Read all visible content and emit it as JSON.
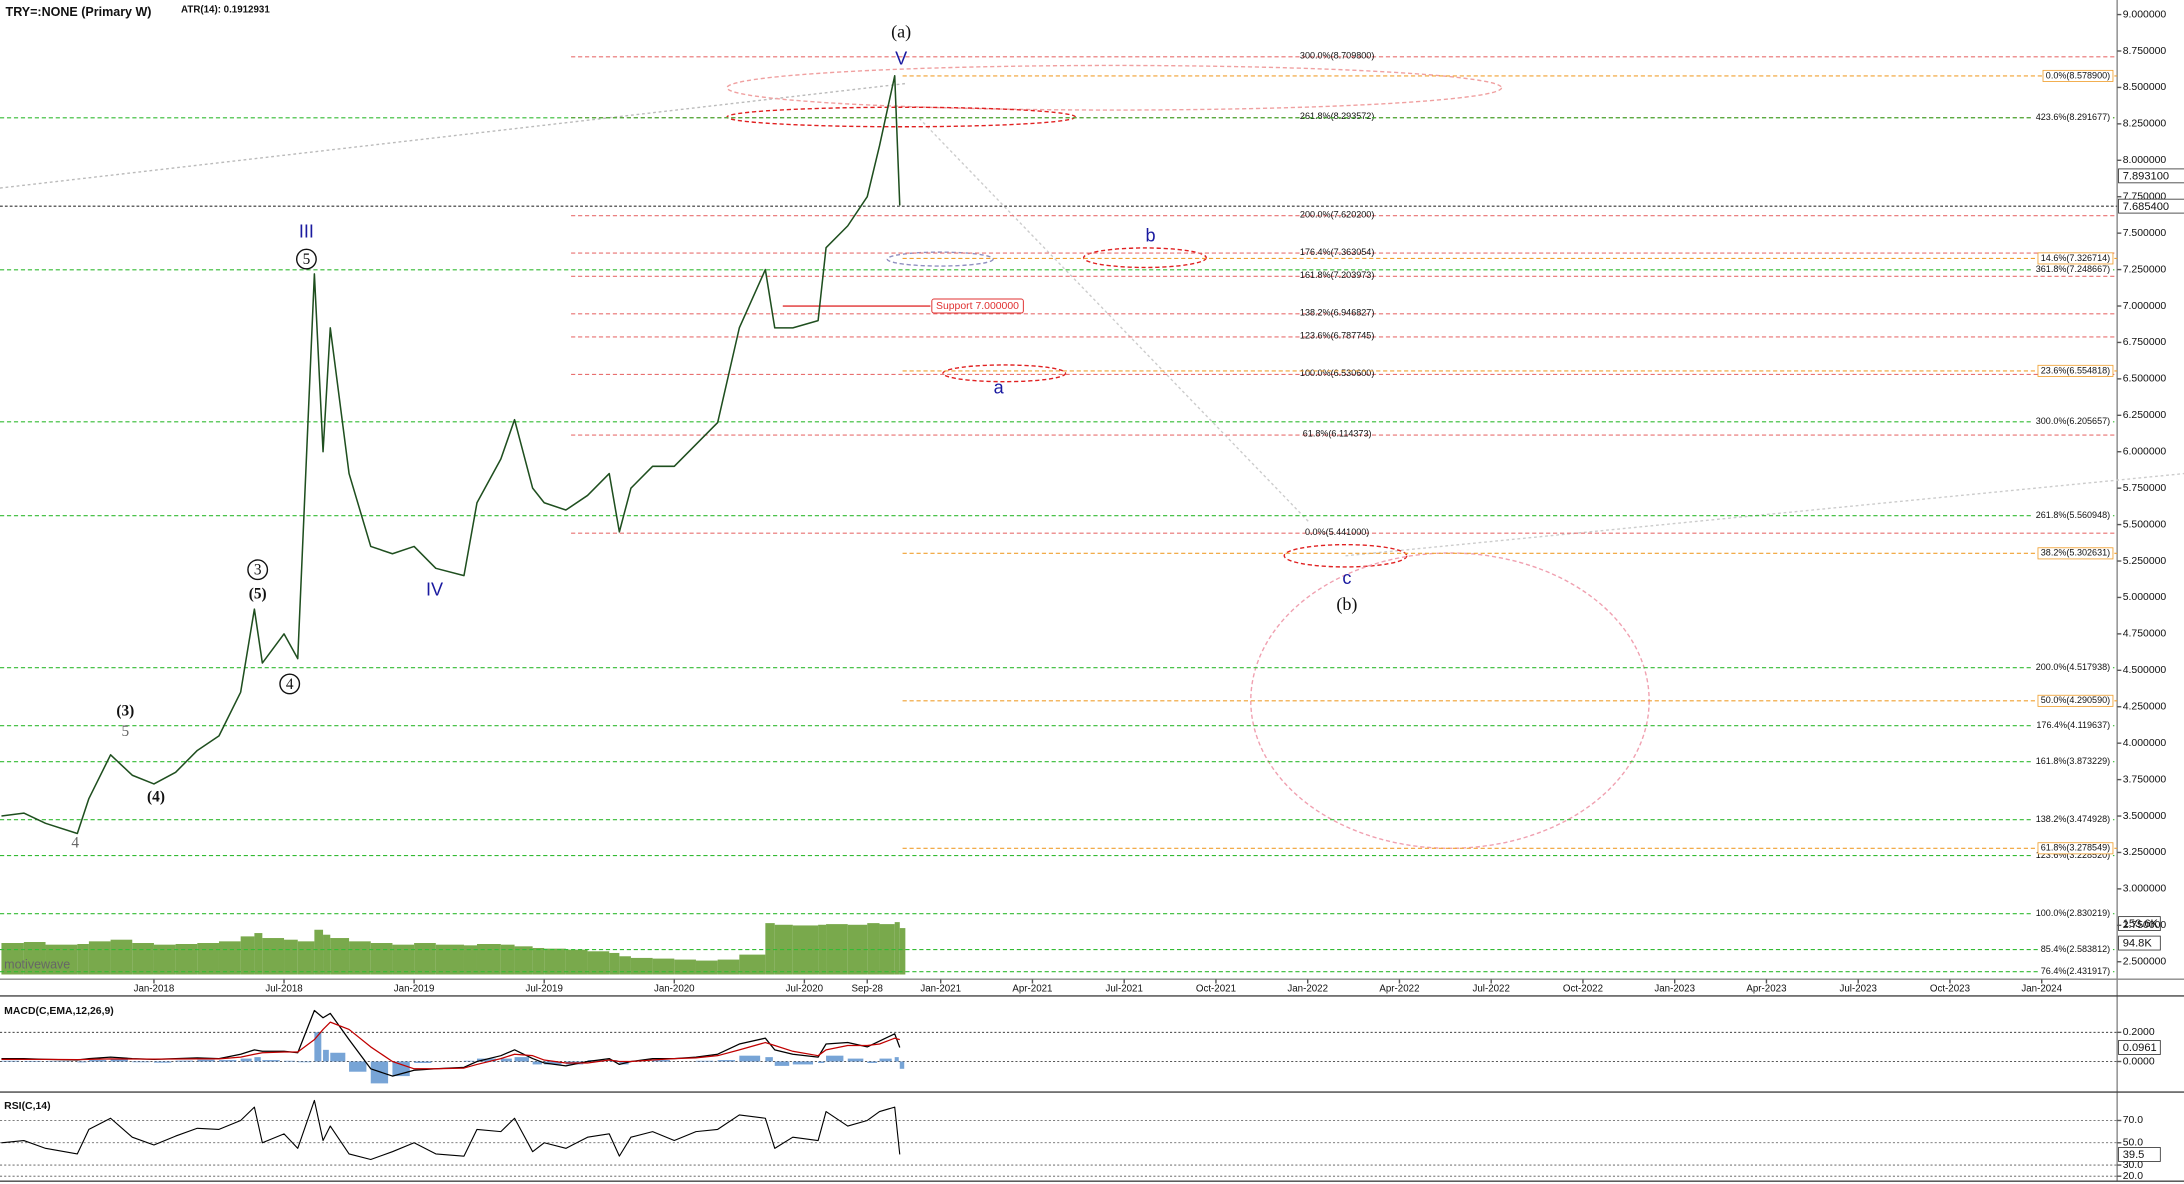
{
  "chart_data": [
    {
      "type": "line",
      "title": "TRY=:NONE (Primary W)",
      "subtitle": "ATR(14): 0.1912931",
      "watermark": "motivewave",
      "x": [
        "2017-05-30",
        "2017-07-01",
        "2017-08-01",
        "2017-09-15",
        "2017-10-01",
        "2017-11-01",
        "2017-12-01",
        "2018-01-01",
        "2018-02-01",
        "2018-03-01",
        "2018-04-01",
        "2018-05-01",
        "2018-05-20",
        "2018-06-01",
        "2018-07-01",
        "2018-07-20",
        "2018-08-13",
        "2018-08-25",
        "2018-09-05",
        "2018-10-01",
        "2018-11-01",
        "2018-12-01",
        "2019-01-01",
        "2019-02-01",
        "2019-03-10",
        "2019-03-28",
        "2019-05-01",
        "2019-05-20",
        "2019-06-15",
        "2019-07-01",
        "2019-08-01",
        "2019-09-01",
        "2019-10-01",
        "2019-10-15",
        "2019-11-01",
        "2019-12-01",
        "2020-01-01",
        "2020-02-01",
        "2020-03-01",
        "2020-04-01",
        "2020-05-07",
        "2020-05-20",
        "2020-06-15",
        "2020-07-20",
        "2020-08-01",
        "2020-09-01",
        "2020-09-28",
        "2020-10-15",
        "2020-11-06",
        "2020-11-13"
      ],
      "series": [
        {
          "color": "#1f4f1f",
          "values": [
            3.5,
            3.52,
            3.45,
            3.38,
            3.62,
            3.92,
            3.78,
            3.72,
            3.8,
            3.95,
            4.05,
            4.35,
            4.92,
            4.55,
            4.75,
            4.58,
            7.22,
            6.0,
            6.85,
            5.85,
            5.35,
            5.3,
            5.35,
            5.2,
            5.15,
            5.65,
            5.95,
            6.22,
            5.75,
            5.65,
            5.6,
            5.7,
            5.85,
            5.45,
            5.75,
            5.9,
            5.9,
            6.05,
            6.2,
            6.85,
            7.25,
            6.85,
            6.85,
            6.9,
            7.4,
            7.55,
            7.75,
            8.1,
            8.58,
            7.69
          ]
        }
      ],
      "volume": {
        "color": "#6aa038",
        "lim": [
          0,
          200000
        ],
        "values": [
          95000,
          98000,
          90000,
          92000,
          100000,
          105000,
          95000,
          90000,
          92000,
          95000,
          100000,
          115000,
          125000,
          110000,
          105000,
          100000,
          135000,
          120000,
          110000,
          100000,
          95000,
          90000,
          95000,
          90000,
          88000,
          92000,
          90000,
          85000,
          80000,
          78000,
          75000,
          70000,
          65000,
          55000,
          50000,
          48000,
          45000,
          42000,
          45000,
          60000,
          155000,
          150000,
          148000,
          150000,
          152000,
          150000,
          155000,
          152000,
          158000,
          140000
        ],
        "ticks": [
          {
            "value": 153600,
            "label": "153.6K"
          },
          {
            "value": 94800,
            "label": "94.8K"
          }
        ]
      },
      "xlim": [
        "2017-05-28",
        "2024-03-15"
      ],
      "xticks": [
        {
          "value": "2018-01-01",
          "label": "Jan-2018"
        },
        {
          "value": "2018-07-01",
          "label": "Jul-2018"
        },
        {
          "value": "2019-01-01",
          "label": "Jan-2019"
        },
        {
          "value": "2019-07-01",
          "label": "Jul-2019"
        },
        {
          "value": "2020-01-01",
          "label": "Jan-2020"
        },
        {
          "value": "2020-07-01",
          "label": "Jul-2020"
        },
        {
          "value": "2020-09-28",
          "label": "Sep-28"
        },
        {
          "value": "2021-01-01",
          "label": "Jan-2021"
        },
        {
          "value": "2021-04-01",
          "label": "Apr-2021"
        },
        {
          "value": "2021-07-01",
          "label": "Jul-2021"
        },
        {
          "value": "2021-10-01",
          "label": "Oct-2021"
        },
        {
          "value": "2022-01-01",
          "label": "Jan-2022"
        },
        {
          "value": "2022-04-01",
          "label": "Apr-2022"
        },
        {
          "value": "2022-07-01",
          "label": "Jul-2022"
        },
        {
          "value": "2022-10-01",
          "label": "Oct-2022"
        },
        {
          "value": "2023-01-01",
          "label": "Jan-2023"
        },
        {
          "value": "2023-04-01",
          "label": "Apr-2023"
        },
        {
          "value": "2023-07-01",
          "label": "Jul-2023"
        },
        {
          "value": "2023-10-01",
          "label": "Oct-2023"
        },
        {
          "value": "2024-01-01",
          "label": "Jan-2024"
        }
      ],
      "ylim": [
        2.38,
        9.1
      ],
      "yticks": [
        {
          "value": 9,
          "label": "9.000000"
        },
        {
          "value": 8.75,
          "label": "8.750000"
        },
        {
          "value": 8.5,
          "label": "8.500000"
        },
        {
          "value": 8.25,
          "label": "8.250000"
        },
        {
          "value": 8,
          "label": "8.000000"
        },
        {
          "value": 7.75,
          "label": "7.750000"
        },
        {
          "value": 7.5,
          "label": "7.500000"
        },
        {
          "value": 7.25,
          "label": "7.250000"
        },
        {
          "value": 7,
          "label": "7.000000"
        },
        {
          "value": 6.75,
          "label": "6.750000"
        },
        {
          "value": 6.5,
          "label": "6.500000"
        },
        {
          "value": 6.25,
          "label": "6.250000"
        },
        {
          "value": 6,
          "label": "6.000000"
        },
        {
          "value": 5.75,
          "label": "5.750000"
        },
        {
          "value": 5.5,
          "label": "5.500000"
        },
        {
          "value": 5.25,
          "label": "5.250000"
        },
        {
          "value": 5,
          "label": "5.000000"
        },
        {
          "value": 4.75,
          "label": "4.750000"
        },
        {
          "value": 4.5,
          "label": "4.500000"
        },
        {
          "value": 4.25,
          "label": "4.250000"
        },
        {
          "value": 4,
          "label": "4.000000"
        },
        {
          "value": 3.75,
          "label": "3.750000"
        },
        {
          "value": 3.5,
          "label": "3.500000"
        },
        {
          "value": 3.25,
          "label": "3.250000"
        },
        {
          "value": 3,
          "label": "3.000000"
        },
        {
          "value": 2.75,
          "label": "2.750000"
        },
        {
          "value": 2.5,
          "label": "2.500000"
        }
      ],
      "last_price": {
        "value": 7.6854,
        "label": "7.685400"
      },
      "ref_price": {
        "value": 7.8931,
        "label": "7.893100"
      },
      "support": {
        "value": 7,
        "label": "Support 7.000000",
        "color": "#e03030"
      },
      "levels": [
        {
          "color": "#e87070",
          "lines": [
            {
              "value": 8.7098,
              "label": "300.0%(8.709800)"
            },
            {
              "value": 8.293572,
              "label": "261.8%(8.293572)"
            },
            {
              "value": 7.6202,
              "label": "200.0%(7.620200)"
            },
            {
              "value": 7.363054,
              "label": "176.4%(7.363054)"
            },
            {
              "value": 7.203973,
              "label": "161.8%(7.203973)"
            },
            {
              "value": 6.946827,
              "label": "138.2%(6.946827)"
            },
            {
              "value": 6.787745,
              "label": "123.6%(6.787745)"
            },
            {
              "value": 6.5306,
              "label": "100.0%(6.530600)"
            },
            {
              "value": 6.114373,
              "label": "61.8%(6.114373)"
            },
            {
              "value": 5.441,
              "label": "0.0%(5.441000)"
            }
          ]
        },
        {
          "color": "#33bb33",
          "lines": [
            {
              "value": 8.291677,
              "label": "423.6%(8.291677)"
            },
            {
              "value": 7.248667,
              "label": "361.8%(7.248667)"
            },
            {
              "value": 6.205657,
              "label": "300.0%(6.205657)"
            },
            {
              "value": 5.560948,
              "label": "261.8%(5.560948)"
            },
            {
              "value": 4.517938,
              "label": "200.0%(4.517938)"
            },
            {
              "value": 4.119637,
              "label": "176.4%(4.119637)"
            },
            {
              "value": 3.873229,
              "label": "161.8%(3.873229)"
            },
            {
              "value": 3.474928,
              "label": "138.2%(3.474928)"
            },
            {
              "value": 3.22852,
              "label": "123.6%(3.228520)"
            },
            {
              "value": 2.830219,
              "label": "100.0%(2.830219)"
            },
            {
              "value": 2.583812,
              "label": "85.4%(2.583812)"
            },
            {
              "value": 2.431917,
              "label": "76.4%(2.431917)"
            }
          ]
        },
        {
          "color": "#f0a030",
          "lines": [
            {
              "value": 8.5789,
              "label": "0.0%(8.578900)"
            },
            {
              "value": 7.326714,
              "label": "14.6%(7.326714)"
            },
            {
              "value": 6.554818,
              "label": "23.6%(6.554818)"
            },
            {
              "value": 5.302631,
              "label": "38.2%(5.302631)"
            },
            {
              "value": 4.29059,
              "label": "50.0%(4.290590)"
            },
            {
              "value": 3.278549,
              "label": "61.8%(3.278549)"
            }
          ]
        }
      ],
      "wave_labels": [
        "(a)",
        "V",
        "III",
        "5",
        "3",
        "(5)",
        "4",
        "(3)",
        "5",
        "(4)",
        "4",
        "IV",
        "b",
        "a",
        "c",
        "(b)"
      ]
    },
    {
      "type": "line",
      "title": "MACD(C,EMA,12,26,9)",
      "x": [
        "2017-05-30",
        "2017-07-01",
        "2017-08-01",
        "2017-09-15",
        "2017-10-01",
        "2017-11-01",
        "2017-12-01",
        "2018-01-01",
        "2018-02-01",
        "2018-03-01",
        "2018-04-01",
        "2018-05-01",
        "2018-05-20",
        "2018-06-01",
        "2018-07-01",
        "2018-07-20",
        "2018-08-13",
        "2018-08-25",
        "2018-09-05",
        "2018-10-01",
        "2018-11-01",
        "2018-12-01",
        "2019-01-01",
        "2019-02-01",
        "2019-03-10",
        "2019-03-28",
        "2019-05-01",
        "2019-05-20",
        "2019-06-15",
        "2019-07-01",
        "2019-08-01",
        "2019-09-01",
        "2019-10-01",
        "2019-10-15",
        "2019-11-01",
        "2019-12-01",
        "2020-01-01",
        "2020-02-01",
        "2020-03-01",
        "2020-04-01",
        "2020-05-07",
        "2020-05-20",
        "2020-06-15",
        "2020-07-20",
        "2020-08-01",
        "2020-09-01",
        "2020-09-28",
        "2020-10-15",
        "2020-11-06",
        "2020-11-13"
      ],
      "series": [
        {
          "type": "bar",
          "color": "#4a86c8",
          "values": [
            0.005,
            0.004,
            -0.003,
            -0.006,
            0.01,
            0.015,
            -0.005,
            -0.008,
            0.006,
            0.012,
            0.01,
            0.02,
            0.03,
            0.01,
            0.005,
            -0.005,
            0.2,
            0.08,
            0.06,
            -0.07,
            -0.15,
            -0.1,
            -0.01,
            0,
            0.005,
            0.02,
            0.02,
            0.03,
            -0.02,
            -0.02,
            -0.02,
            0.01,
            0.01,
            -0.02,
            0,
            0.01,
            0,
            0.005,
            0.01,
            0.04,
            0.03,
            -0.03,
            -0.02,
            -0.01,
            0.04,
            0.02,
            -0.01,
            0.02,
            0.03,
            -0.05
          ]
        },
        {
          "color": "#000000",
          "values": [
            0.02,
            0.02,
            0.015,
            0.01,
            0.02,
            0.03,
            0.02,
            0.015,
            0.02,
            0.025,
            0.02,
            0.05,
            0.08,
            0.07,
            0.07,
            0.06,
            0.35,
            0.3,
            0.33,
            0.15,
            -0.05,
            -0.1,
            -0.06,
            -0.05,
            -0.04,
            0,
            0.04,
            0.08,
            0.02,
            -0.01,
            -0.03,
            0,
            0.02,
            -0.02,
            0,
            0.02,
            0.02,
            0.03,
            0.05,
            0.12,
            0.16,
            0.08,
            0.05,
            0.03,
            0.12,
            0.13,
            0.1,
            0.14,
            0.19,
            0.0961
          ]
        },
        {
          "color": "#c00000",
          "values": [
            0.015,
            0.015,
            0.015,
            0.013,
            0.015,
            0.018,
            0.017,
            0.016,
            0.017,
            0.018,
            0.018,
            0.03,
            0.05,
            0.06,
            0.065,
            0.065,
            0.15,
            0.22,
            0.27,
            0.22,
            0.1,
            0,
            -0.05,
            -0.05,
            -0.045,
            -0.02,
            0.02,
            0.05,
            0.04,
            0.01,
            -0.01,
            -0.01,
            0.01,
            0,
            0,
            0.01,
            0.02,
            0.025,
            0.04,
            0.08,
            0.13,
            0.11,
            0.07,
            0.04,
            0.08,
            0.11,
            0.11,
            0.12,
            0.16,
            0.15
          ]
        }
      ],
      "ylim": [
        -0.2,
        0.44
      ],
      "yticks": [
        {
          "value": 0.2,
          "label": "0.2000"
        },
        {
          "value": 0,
          "label": "0.0000"
        }
      ],
      "last_value": 0.0961
    },
    {
      "type": "line",
      "title": "RSI(C,14)",
      "x": [
        "2017-05-30",
        "2017-07-01",
        "2017-08-01",
        "2017-09-15",
        "2017-10-01",
        "2017-11-01",
        "2017-12-01",
        "2018-01-01",
        "2018-02-01",
        "2018-03-01",
        "2018-04-01",
        "2018-05-01",
        "2018-05-20",
        "2018-06-01",
        "2018-07-01",
        "2018-07-20",
        "2018-08-13",
        "2018-08-25",
        "2018-09-05",
        "2018-10-01",
        "2018-11-01",
        "2018-12-01",
        "2019-01-01",
        "2019-02-01",
        "2019-03-10",
        "2019-03-28",
        "2019-05-01",
        "2019-05-20",
        "2019-06-15",
        "2019-07-01",
        "2019-08-01",
        "2019-09-01",
        "2019-10-01",
        "2019-10-15",
        "2019-11-01",
        "2019-12-01",
        "2020-01-01",
        "2020-02-01",
        "2020-03-01",
        "2020-04-01",
        "2020-05-07",
        "2020-05-20",
        "2020-06-15",
        "2020-07-20",
        "2020-08-01",
        "2020-09-01",
        "2020-09-28",
        "2020-10-15",
        "2020-11-06",
        "2020-11-13"
      ],
      "series": [
        {
          "color": "#000000",
          "values": [
            50,
            52,
            45,
            40,
            62,
            72,
            55,
            48,
            56,
            63,
            62,
            70,
            82,
            50,
            58,
            45,
            88,
            52,
            65,
            40,
            35,
            42,
            50,
            40,
            38,
            62,
            60,
            72,
            42,
            50,
            45,
            55,
            58,
            38,
            55,
            60,
            52,
            60,
            62,
            75,
            72,
            45,
            55,
            52,
            78,
            65,
            70,
            78,
            82,
            39.5
          ]
        }
      ],
      "ylim": [
        15.5,
        93
      ],
      "yticks": [
        {
          "value": 70,
          "label": "70.0"
        },
        {
          "value": 50,
          "label": "50.0"
        },
        {
          "value": 30,
          "label": "30.0"
        },
        {
          "value": 20,
          "label": "20.0"
        }
      ],
      "last_value": 39.5
    }
  ]
}
